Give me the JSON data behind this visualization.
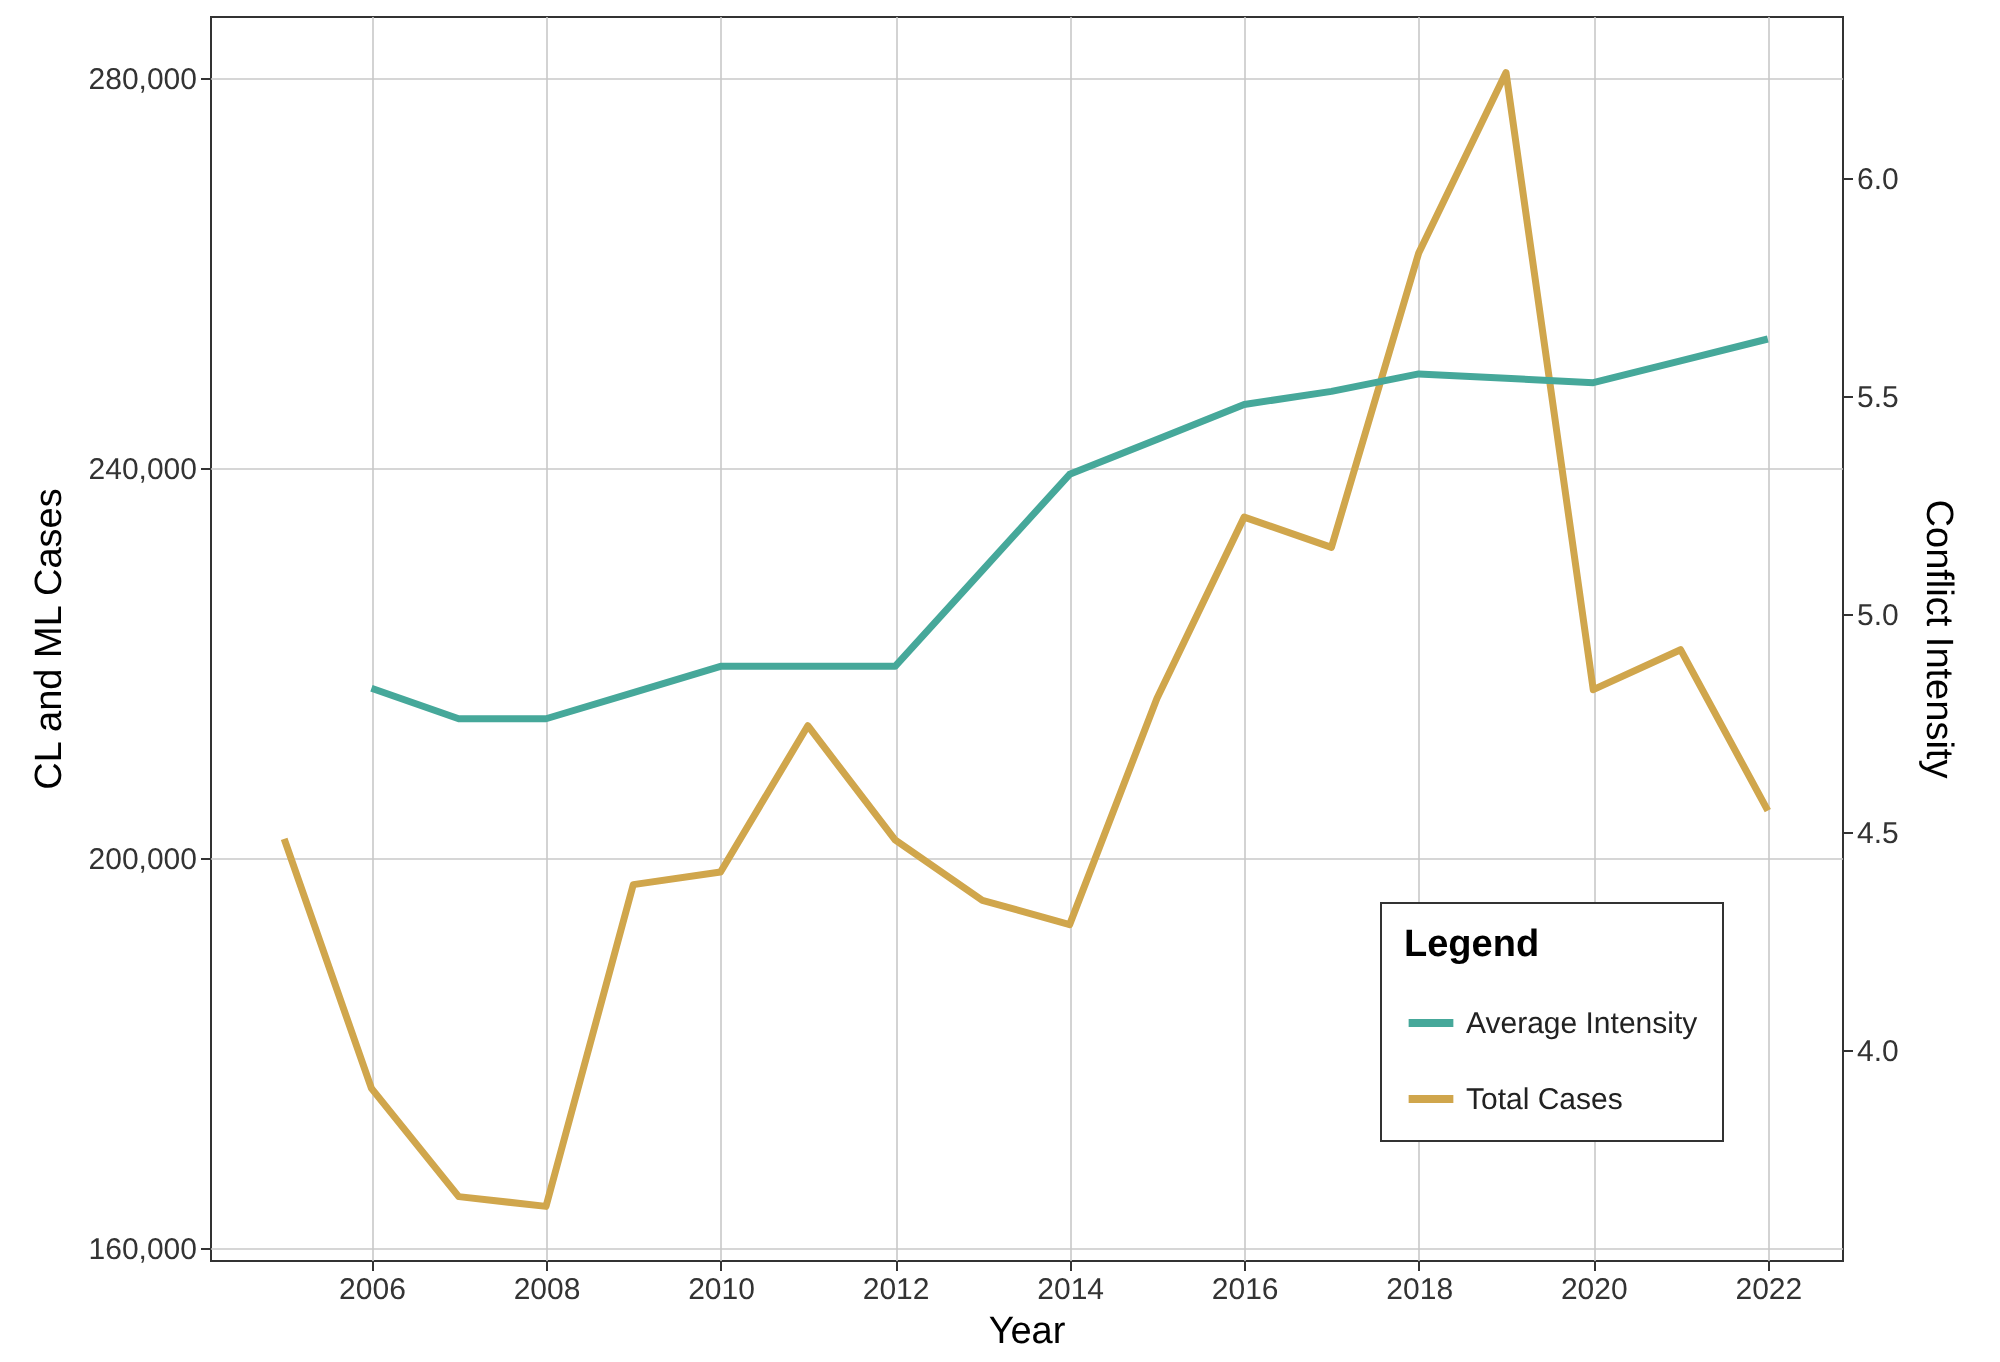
{
  "chart_data": {
    "type": "line",
    "xlabel": "Year",
    "ylabel": "CL and ML Cases",
    "y2label": "Conflict Intensity",
    "legend_title": "Legend",
    "legend": "bottom right",
    "grid": true,
    "x": [
      2005,
      2006,
      2007,
      2008,
      2009,
      2010,
      2011,
      2012,
      2013,
      2014,
      2015,
      2016,
      2017,
      2018,
      2019,
      2020,
      2021,
      2022
    ],
    "series": [
      {
        "name": "Average Intensity",
        "color": "#46a89a",
        "axis": "y2",
        "values": [
          null,
          4.83,
          4.76,
          4.76,
          4.82,
          4.88,
          4.88,
          4.88,
          5.1,
          5.32,
          5.4,
          5.48,
          5.51,
          5.55,
          5.54,
          5.53,
          5.58,
          5.63
        ]
      },
      {
        "name": "Total Cases",
        "color": "#d0a64c",
        "values": [
          202000,
          176400,
          165300,
          164300,
          197300,
          198600,
          213600,
          201900,
          195700,
          193200,
          216400,
          235000,
          231900,
          262100,
          280600,
          217300,
          221400,
          204900
        ]
      }
    ],
    "xlim": [
      2004.15,
      2022.85
    ],
    "xticks": [
      2006,
      2008,
      2010,
      2012,
      2014,
      2016,
      2018,
      2020,
      2022
    ],
    "ylim": [
      158800,
      286400
    ],
    "yticks": [
      {
        "value": 160000,
        "label": "160,000"
      },
      {
        "value": 200000,
        "label": "200,000"
      },
      {
        "value": 240000,
        "label": "240,000"
      },
      {
        "value": 280000,
        "label": "280,000"
      }
    ],
    "y2lim": [
      3.52,
      6.37
    ],
    "y2ticks": [
      {
        "value": 4,
        "label": "4.0"
      },
      {
        "value": 4.5,
        "label": "4.5"
      },
      {
        "value": 5,
        "label": "5.0"
      },
      {
        "value": 5.5,
        "label": "5.5"
      },
      {
        "value": 6,
        "label": "6.0"
      }
    ]
  }
}
